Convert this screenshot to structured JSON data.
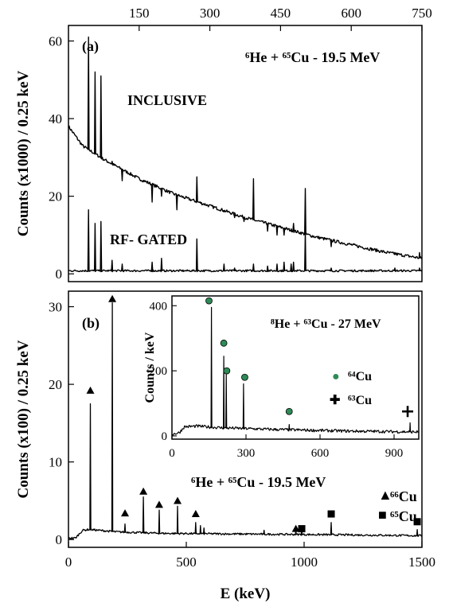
{
  "chart_data": [
    {
      "id": "panel_a",
      "type": "line",
      "panel_label": "(a)",
      "title": "⁶He + ⁶⁵Cu - 19.5 MeV",
      "xlabel": "",
      "ylabel": "Counts (x1000) / 0.25 keV",
      "top_axis_ticks": [
        "150",
        "300",
        "450",
        "600",
        "750"
      ],
      "xlim": [
        0,
        1500
      ],
      "ylim": [
        -2,
        64
      ],
      "yticks": [
        "0",
        "20",
        "40",
        "60"
      ],
      "series": [
        {
          "name": "INCLUSIVE",
          "baseline": [
            [
              0,
              38
            ],
            [
              60,
              33
            ],
            [
              150,
              29.5
            ],
            [
              300,
              24.5
            ],
            [
              450,
              20.5
            ],
            [
              600,
              17.5
            ],
            [
              750,
              14.5
            ],
            [
              900,
              12
            ],
            [
              1050,
              9.5
            ],
            [
              1200,
              7.5
            ],
            [
              1350,
              5.5
            ],
            [
              1500,
              4
            ]
          ],
          "peaks": [
            [
              85,
              61
            ],
            [
              113,
              52
            ],
            [
              138,
              51
            ],
            [
              185,
              29
            ],
            [
              228,
              24
            ],
            [
              355,
              18.5
            ],
            [
              395,
              20
            ],
            [
              460,
              16.5
            ],
            [
              545,
              25
            ],
            [
              660,
              16
            ],
            [
              705,
              14.5
            ],
            [
              745,
              13.5
            ],
            [
              785,
              24.5
            ],
            [
              845,
              11
            ],
            [
              885,
              10
            ],
            [
              915,
              10
            ],
            [
              945,
              11
            ],
            [
              955,
              13
            ],
            [
              1005,
              22
            ],
            [
              1115,
              7
            ],
            [
              1385,
              5.5
            ],
            [
              1490,
              5.5
            ]
          ]
        },
        {
          "name": "RF- GATED",
          "baseline": [
            [
              0,
              0.8
            ],
            [
              1500,
              0.8
            ]
          ],
          "peaks": [
            [
              85,
              16.5
            ],
            [
              113,
              13
            ],
            [
              138,
              13.5
            ],
            [
              185,
              3.5
            ],
            [
              228,
              2.5
            ],
            [
              355,
              3
            ],
            [
              395,
              4
            ],
            [
              545,
              9
            ],
            [
              660,
              2.5
            ],
            [
              705,
              1.5
            ],
            [
              785,
              2.5
            ],
            [
              845,
              2
            ],
            [
              885,
              2.5
            ],
            [
              915,
              3
            ],
            [
              945,
              2.5
            ],
            [
              955,
              3
            ],
            [
              1005,
              11
            ],
            [
              1115,
              1.5
            ],
            [
              1385,
              1.5
            ],
            [
              1490,
              1.5
            ]
          ]
        }
      ]
    },
    {
      "id": "panel_b",
      "type": "line",
      "panel_label": "(b)",
      "title": "⁶He + ⁶⁵Cu - 19.5 MeV",
      "xlabel": "E (keV)",
      "ylabel": "Counts (x100) / 0.25 keV",
      "xlim": [
        0,
        1500
      ],
      "xticks": [
        "0",
        "500",
        "1000",
        "1500"
      ],
      "ylim": [
        -1,
        32
      ],
      "yticks": [
        "0",
        "10",
        "20",
        "30"
      ],
      "baseline": [
        [
          0,
          0.2
        ],
        [
          30,
          0.2
        ],
        [
          60,
          1.2
        ],
        [
          90,
          1.3
        ],
        [
          200,
          1.0
        ],
        [
          400,
          0.8
        ],
        [
          800,
          0.7
        ],
        [
          1200,
          0.6
        ],
        [
          1500,
          0.5
        ]
      ],
      "peaks": [
        [
          93,
          17.5
        ],
        [
          186,
          30.5
        ],
        [
          240,
          2
        ],
        [
          318,
          5.5
        ],
        [
          385,
          3.8
        ],
        [
          463,
          4.3
        ],
        [
          540,
          2.2
        ],
        [
          560,
          1.8
        ],
        [
          575,
          1.5
        ],
        [
          830,
          1.2
        ],
        [
          965,
          1.1
        ],
        [
          990,
          1.3
        ],
        [
          1115,
          2.2
        ],
        [
          1480,
          1.3
        ]
      ],
      "markers": [
        {
          "series": "⁶⁶Cu",
          "symbol": "triangle",
          "points": [
            [
              93,
              19.2
            ],
            [
              186,
              31
            ],
            [
              240,
              3.4
            ],
            [
              318,
              6.2
            ],
            [
              385,
              4.5
            ],
            [
              463,
              5
            ],
            [
              540,
              3.3
            ],
            [
              965,
              1.4
            ]
          ]
        },
        {
          "series": "⁶⁵Cu",
          "symbol": "square",
          "points": [
            [
              990,
              1.4
            ],
            [
              1115,
              3.3
            ],
            [
              1480,
              2.3
            ]
          ]
        }
      ],
      "legend": [
        {
          "symbol": "▲",
          "label": "⁶⁶Cu"
        },
        {
          "symbol": "■",
          "label": "⁶⁵Cu"
        }
      ],
      "inset": {
        "type": "line",
        "title": "⁸He + ⁶³Cu - 27 MeV",
        "xlabel": "",
        "ylabel": "Counts / keV",
        "xlim": [
          0,
          1000
        ],
        "xticks": [
          "0",
          "300",
          "600",
          "900"
        ],
        "ylim": [
          -10,
          430
        ],
        "yticks": [
          "0",
          "200",
          "400"
        ],
        "baseline": [
          [
            0,
            5
          ],
          [
            30,
            10
          ],
          [
            50,
            28
          ],
          [
            100,
            30
          ],
          [
            200,
            25
          ],
          [
            400,
            20
          ],
          [
            700,
            15
          ],
          [
            1000,
            12
          ]
        ],
        "peaks": [
          [
            160,
            395
          ],
          [
            210,
            245
          ],
          [
            220,
            195
          ],
          [
            290,
            160
          ],
          [
            475,
            35
          ],
          [
            965,
            40
          ]
        ],
        "markers": [
          {
            "series": "⁶⁴Cu",
            "symbol": "circle",
            "color": "#2e8b57",
            "points": [
              [
                150,
                415
              ],
              [
                210,
                285
              ],
              [
                222,
                200
              ],
              [
                295,
                180
              ],
              [
                475,
                75
              ]
            ]
          },
          {
            "series": "⁶³Cu",
            "symbol": "cross",
            "points": [
              [
                955,
                75
              ]
            ]
          }
        ],
        "legend": [
          {
            "symbol": "●",
            "label": "⁶⁴Cu"
          },
          {
            "symbol": "✚",
            "label": "⁶³Cu"
          }
        ]
      }
    }
  ],
  "colors": {
    "axis": "#000000",
    "trace": "#000000",
    "cu64_marker": "#2e8b57"
  }
}
